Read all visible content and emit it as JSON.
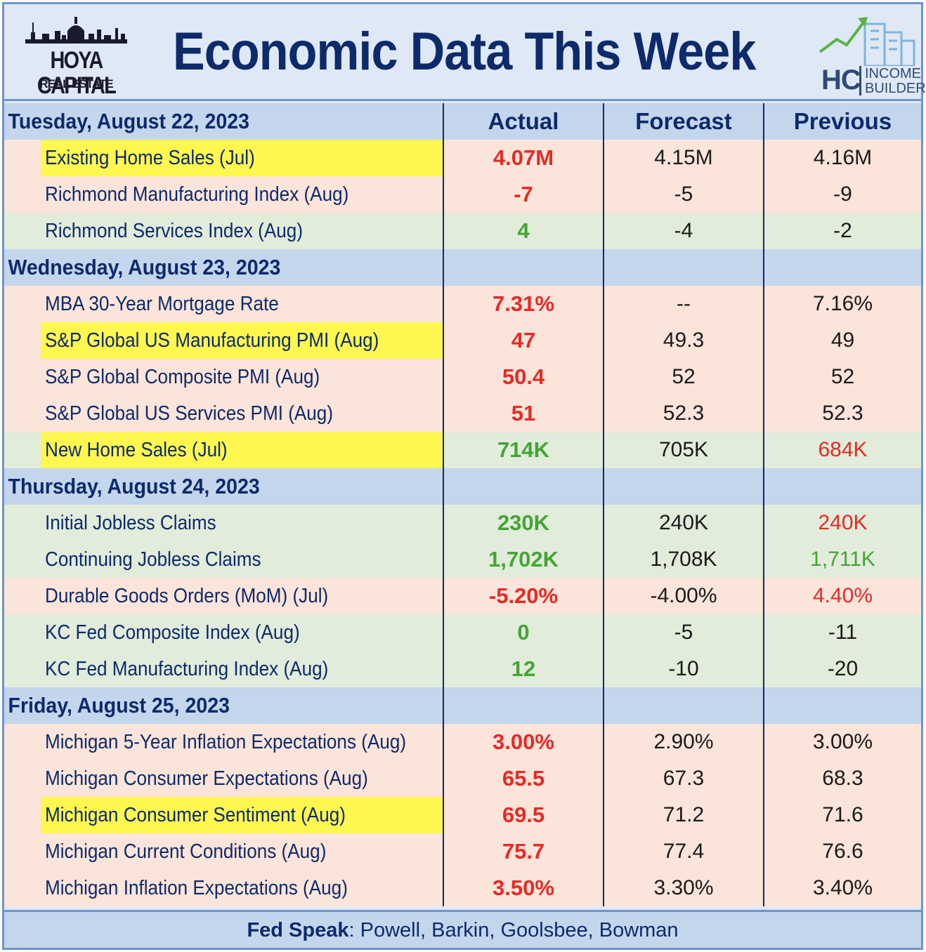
{
  "header": {
    "title": "Economic Data This Week",
    "left_logo": {
      "name": "HOYA CAPITAL",
      "sub": "REAL ESTATE"
    },
    "right_logo": {
      "letters": "HC",
      "line1": "INCOME",
      "line2": "BUILDER"
    }
  },
  "columns": [
    "Actual",
    "Forecast",
    "Previous"
  ],
  "colors": {
    "title": "#0d2a6b",
    "negative": "#e32b26",
    "positive": "#44a534",
    "highlight": "#fdf74f",
    "row_red": "#fbe4da",
    "row_green": "#e1ecdb",
    "row_blue": "#dfe9f5",
    "day_band": "#c4d6ec"
  },
  "chart_data": {
    "type": "table",
    "title": "Economic Data This Week",
    "columns": [
      "Actual",
      "Forecast",
      "Previous"
    ],
    "days": [
      {
        "label": "Tuesday, August 22, 2023",
        "rows": [
          {
            "name": "Existing Home Sales (Jul)",
            "actual": "4.07M",
            "forecast": "4.15M",
            "previous": "4.16M",
            "highlight": true,
            "bg": "red",
            "actual_color": "red",
            "previous_color": "dark"
          },
          {
            "name": "Richmond Manufacturing Index (Aug)",
            "actual": "-7",
            "forecast": "-5",
            "previous": "-9",
            "highlight": false,
            "bg": "red",
            "actual_color": "red",
            "previous_color": "dark"
          },
          {
            "name": "Richmond Services Index (Aug)",
            "actual": "4",
            "forecast": "-4",
            "previous": "-2",
            "highlight": false,
            "bg": "green",
            "actual_color": "green",
            "previous_color": "dark"
          }
        ]
      },
      {
        "label": "Wednesday, August 23, 2023",
        "rows": [
          {
            "name": "MBA 30-Year Mortgage Rate",
            "actual": "7.31%",
            "forecast": "--",
            "previous": "7.16%",
            "highlight": false,
            "bg": "red",
            "actual_color": "red",
            "previous_color": "dark"
          },
          {
            "name": "S&P Global US Manufacturing PMI (Aug)",
            "actual": "47",
            "forecast": "49.3",
            "previous": "49",
            "highlight": true,
            "bg": "red",
            "actual_color": "red",
            "previous_color": "dark"
          },
          {
            "name": "S&P Global Composite PMI (Aug)",
            "actual": "50.4",
            "forecast": "52",
            "previous": "52",
            "highlight": false,
            "bg": "red",
            "actual_color": "red",
            "previous_color": "dark"
          },
          {
            "name": "S&P Global US Services PMI (Aug)",
            "actual": "51",
            "forecast": "52.3",
            "previous": "52.3",
            "highlight": false,
            "bg": "red",
            "actual_color": "red",
            "previous_color": "dark"
          },
          {
            "name": "New Home Sales (Jul)",
            "actual": "714K",
            "forecast": "705K",
            "previous": "684K",
            "highlight": true,
            "bg": "green",
            "actual_color": "green",
            "previous_color": "red"
          }
        ]
      },
      {
        "label": "Thursday, August 24, 2023",
        "rows": [
          {
            "name": "Initial Jobless Claims",
            "actual": "230K",
            "forecast": "240K",
            "previous": "240K",
            "highlight": false,
            "bg": "green",
            "actual_color": "green",
            "previous_color": "red"
          },
          {
            "name": "Continuing Jobless Claims",
            "actual": "1,702K",
            "forecast": "1,708K",
            "previous": "1,711K",
            "highlight": false,
            "bg": "green",
            "actual_color": "green",
            "previous_color": "green"
          },
          {
            "name": "Durable Goods Orders (MoM) (Jul)",
            "actual": "-5.20%",
            "forecast": "-4.00%",
            "previous": "4.40%",
            "highlight": false,
            "bg": "red",
            "actual_color": "red",
            "previous_color": "red"
          },
          {
            "name": "KC Fed Composite Index (Aug)",
            "actual": "0",
            "forecast": "-5",
            "previous": "-11",
            "highlight": false,
            "bg": "green",
            "actual_color": "green",
            "previous_color": "dark"
          },
          {
            "name": "KC Fed Manufacturing Index (Aug)",
            "actual": "12",
            "forecast": "-10",
            "previous": "-20",
            "highlight": false,
            "bg": "green",
            "actual_color": "green",
            "previous_color": "dark"
          }
        ]
      },
      {
        "label": "Friday, August 25, 2023",
        "rows": [
          {
            "name": "Michigan 5-Year Inflation Expectations (Aug)",
            "actual": "3.00%",
            "forecast": "2.90%",
            "previous": "3.00%",
            "highlight": false,
            "bg": "red",
            "actual_color": "red",
            "previous_color": "dark"
          },
          {
            "name": "Michigan Consumer Expectations (Aug)",
            "actual": "65.5",
            "forecast": "67.3",
            "previous": "68.3",
            "highlight": false,
            "bg": "red",
            "actual_color": "red",
            "previous_color": "dark"
          },
          {
            "name": "Michigan Consumer Sentiment (Aug)",
            "actual": "69.5",
            "forecast": "71.2",
            "previous": "71.6",
            "highlight": true,
            "bg": "red",
            "actual_color": "red",
            "previous_color": "dark"
          },
          {
            "name": "Michigan Current Conditions (Aug)",
            "actual": "75.7",
            "forecast": "77.4",
            "previous": "76.6",
            "highlight": false,
            "bg": "red",
            "actual_color": "red",
            "previous_color": "dark"
          },
          {
            "name": "Michigan Inflation Expectations (Aug)",
            "actual": "3.50%",
            "forecast": "3.30%",
            "previous": "3.40%",
            "highlight": false,
            "bg": "red",
            "actual_color": "red",
            "previous_color": "dark"
          }
        ]
      }
    ]
  },
  "footer": {
    "label": "Fed Speak",
    "text": ": Powell, Barkin, Goolsbee, Bowman"
  }
}
